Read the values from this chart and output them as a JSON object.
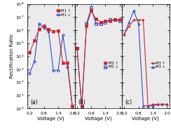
{
  "panel_a": {
    "label_up": "M1 ↑",
    "label_down": "M1 ↓",
    "x": [
      0.2,
      0.4,
      0.6,
      0.8,
      1.0,
      1.2,
      1.4,
      1.6,
      1.8,
      2.0
    ],
    "y_up": [
      20000.0,
      150000.0,
      1200000.0,
      2000000.0,
      1200000.0,
      800000.0,
      900000.0,
      3000.0,
      3000.0,
      1.5
    ],
    "y_down": [
      500.0,
      4000.0,
      3000000.0,
      1500000.0,
      800000.0,
      800.0,
      800.0,
      400000.0,
      1500.0,
      1.5
    ]
  },
  "panel_b": {
    "label_up": "M2 ↑",
    "label_down": "M2 ↓",
    "x": [
      0.2,
      0.4,
      0.6,
      0.8,
      1.0,
      1.2,
      1.4,
      1.6,
      1.8,
      2.0
    ],
    "y_up": [
      40000.0,
      1.5,
      2000000.0,
      30000000.0,
      7000000.0,
      4000000.0,
      5000000.0,
      5000000.0,
      6000000.0,
      6000000.0
    ],
    "y_down": [
      40000.0,
      1.5,
      3000000.0,
      50000000.0,
      3000000.0,
      3000000.0,
      4000000.0,
      6000000.0,
      6000000.0,
      5000000.0
    ]
  },
  "panel_c": {
    "label_up": "M3 ↑",
    "label_down": "M3 ↓",
    "x": [
      0.2,
      0.4,
      0.6,
      0.8,
      1.0,
      1.2,
      1.4,
      1.6,
      1.8,
      2.0
    ],
    "y_up": [
      500000.0,
      2000000.0,
      6000000.0,
      6000000.0,
      6000000.0,
      1.5,
      2.0,
      2.0,
      2.0,
      2.0
    ],
    "y_down": [
      500000.0,
      4000000.0,
      30000000.0,
      3000000.0,
      1.5,
      1.5,
      1.5,
      2.0,
      2.0,
      2.0
    ]
  },
  "color_up": "#cc2222",
  "color_down": "#2244cc",
  "xlim": [
    0.1,
    2.1
  ],
  "ylim_log": [
    1,
    100000000.0
  ],
  "xticks": [
    0.2,
    0.8,
    1.4,
    2.0
  ],
  "xlabel": "Voltage (V)",
  "ylabel": "Rectification Ratio",
  "panel_labels": [
    "(a)",
    "(b)",
    "(c)"
  ],
  "background": "#ebebeb"
}
